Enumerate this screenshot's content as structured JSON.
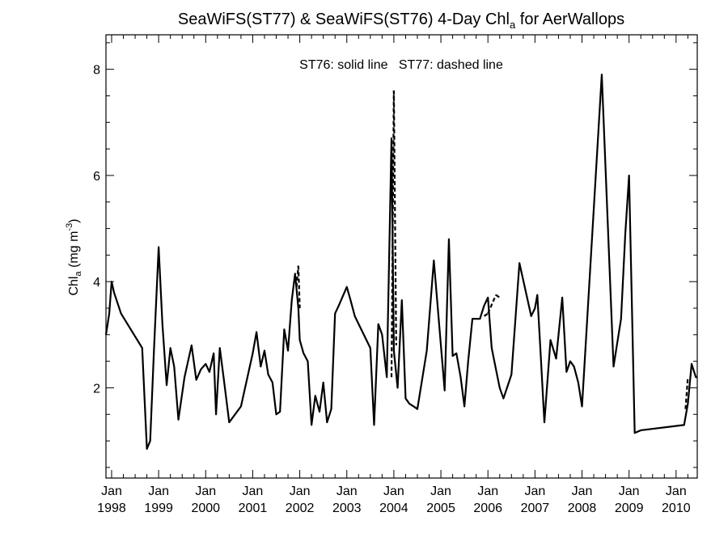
{
  "chart_data": {
    "type": "line",
    "title_main": "SeaWiFS(ST77) & SeaWiFS(ST76) 4-Day Chl",
    "title_sub": "a",
    "title_tail": " for AerWallops",
    "ylabel_main": "Chl",
    "ylabel_sub": "a",
    "ylabel_units": " (mg m",
    "ylabel_sup": "-3",
    "ylabel_close": ")",
    "annotation": "ST76: solid line   ST77: dashed line",
    "xlim": [
      1997.88,
      2010.45
    ],
    "ylim": [
      0.3,
      8.65
    ],
    "y_ticks": [
      2,
      4,
      6,
      8
    ],
    "y_tick_labels": [
      "2",
      "4",
      "6",
      "8"
    ],
    "y_minor_step": 0.5,
    "x_ticks": [
      1998,
      1999,
      2000,
      2001,
      2002,
      2003,
      2004,
      2005,
      2006,
      2007,
      2008,
      2009,
      2010
    ],
    "x_tick_month": "Jan",
    "x_tick_years": [
      "1998",
      "1999",
      "2000",
      "2001",
      "2002",
      "2003",
      "2004",
      "2005",
      "2006",
      "2007",
      "2008",
      "2009",
      "2010"
    ],
    "series": [
      {
        "style": "solid",
        "x": [
          1997.88,
          1997.95,
          1998.0,
          1998.05,
          1998.2,
          1998.65,
          1998.75,
          1998.82,
          1998.9,
          1999.0,
          1999.08,
          1999.17,
          1999.25,
          1999.33,
          1999.42,
          1999.55,
          1999.7,
          1999.8,
          1999.9,
          2000.0,
          2000.08,
          2000.17,
          2000.22,
          2000.3,
          2000.38,
          2000.5,
          2000.75,
          2001.0,
          2001.08,
          2001.17,
          2001.25,
          2001.33,
          2001.42,
          2001.5,
          2001.58,
          2001.67,
          2001.75,
          2001.83,
          2001.9,
          2001.97,
          2002.0,
          2002.08,
          2002.17,
          2002.25,
          2002.33,
          2002.42,
          2002.5,
          2002.58,
          2002.67,
          2002.75,
          2002.83,
          2003.0,
          2003.08,
          2003.17,
          2003.5,
          2003.58,
          2003.67,
          2003.75,
          2003.85,
          2003.95,
          2004.0,
          2004.08,
          2004.17,
          2004.25,
          2004.33,
          2004.42,
          2004.5,
          2004.7,
          2004.85,
          2005.0,
          2005.08,
          2005.17,
          2005.25,
          2005.33,
          2005.42,
          2005.5,
          2005.58,
          2005.67,
          2005.83,
          2005.92,
          2006.0,
          2006.08,
          2006.17,
          2006.25,
          2006.33,
          2006.5,
          2006.67,
          2006.92,
          2007.0,
          2007.05,
          2007.12,
          2007.2,
          2007.33,
          2007.45,
          2007.58,
          2007.67,
          2007.75,
          2007.83,
          2007.92,
          2008.0,
          2008.42,
          2008.67,
          2008.83,
          2008.92,
          2009.0,
          2009.12,
          2009.25,
          2010.17,
          2010.25,
          2010.33,
          2010.42,
          2010.45
        ],
        "y": [
          3.0,
          3.4,
          4.0,
          3.8,
          3.4,
          2.75,
          0.85,
          1.0,
          2.7,
          4.65,
          3.2,
          2.05,
          2.75,
          2.4,
          1.4,
          2.2,
          2.8,
          2.15,
          2.35,
          2.45,
          2.3,
          2.65,
          1.5,
          2.75,
          2.2,
          1.35,
          1.65,
          2.65,
          3.05,
          2.4,
          2.7,
          2.25,
          2.1,
          1.5,
          1.55,
          3.1,
          2.7,
          3.65,
          4.15,
          3.5,
          2.9,
          2.65,
          2.5,
          1.3,
          1.85,
          1.55,
          2.1,
          1.35,
          1.6,
          3.4,
          3.55,
          3.9,
          3.65,
          3.35,
          2.75,
          1.3,
          3.2,
          3.0,
          2.2,
          6.7,
          2.7,
          2.0,
          3.65,
          1.8,
          1.7,
          1.65,
          1.6,
          2.7,
          4.4,
          2.8,
          1.95,
          4.8,
          2.6,
          2.65,
          2.2,
          1.65,
          2.5,
          3.3,
          3.3,
          3.55,
          3.7,
          2.75,
          2.35,
          2.0,
          1.8,
          2.25,
          4.35,
          3.35,
          3.5,
          3.75,
          2.65,
          1.35,
          2.9,
          2.55,
          3.7,
          2.3,
          2.5,
          2.4,
          2.1,
          1.65,
          7.9,
          2.4,
          3.3,
          4.9,
          6.0,
          1.15,
          1.2,
          1.3,
          1.7,
          2.45,
          2.2,
          2.2
        ]
      },
      {
        "style": "dashed",
        "x": [
          2001.93,
          2001.97,
          2002.0,
          2003.95,
          2004.0,
          2004.05,
          2005.92,
          2006.0,
          2006.17,
          2006.25,
          2010.2,
          2010.25
        ],
        "y": [
          3.9,
          4.3,
          3.5,
          2.2,
          7.6,
          2.8,
          3.35,
          3.4,
          3.75,
          3.7,
          1.6,
          2.2
        ]
      }
    ]
  }
}
